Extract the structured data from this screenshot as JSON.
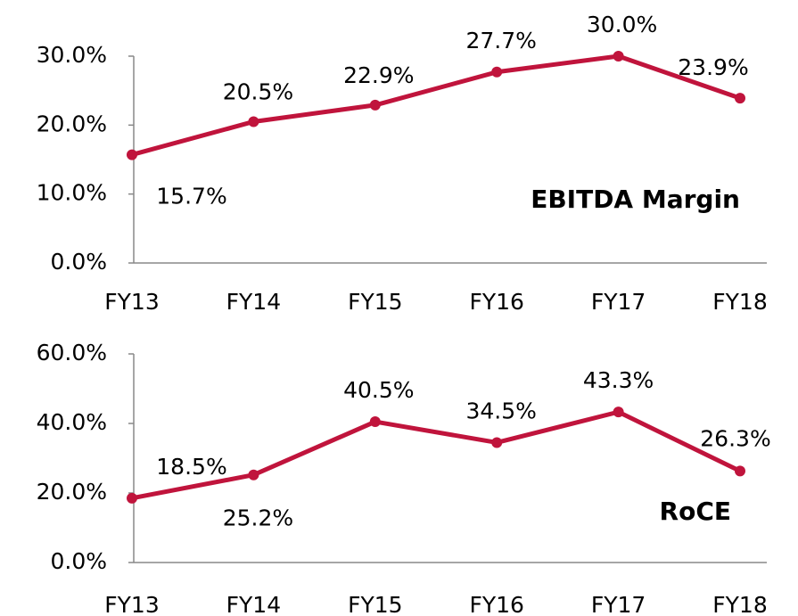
{
  "chart_data": [
    {
      "type": "line",
      "annotation": "EBITDA Margin",
      "categories": [
        "FY13",
        "FY14",
        "FY15",
        "FY16",
        "FY17",
        "FY18"
      ],
      "series": [
        {
          "color": "#c0143c",
          "values": [
            15.7,
            20.5,
            22.9,
            27.7,
            30.0,
            23.9
          ],
          "value_labels": [
            "15.7%",
            "20.5%",
            "22.9%",
            "27.7%",
            "30.0%",
            "23.9%"
          ]
        }
      ],
      "ylim": [
        0,
        30
      ],
      "yticks": [
        {
          "value": 0,
          "label": "0.0%"
        },
        {
          "value": 10,
          "label": "10.0%"
        },
        {
          "value": 20,
          "label": "20.0%"
        },
        {
          "value": 30,
          "label": "30.0%"
        }
      ]
    },
    {
      "type": "line",
      "annotation": "RoCE",
      "categories": [
        "FY13",
        "FY14",
        "FY15",
        "FY16",
        "FY17",
        "FY18"
      ],
      "series": [
        {
          "color": "#c0143c",
          "values": [
            18.5,
            25.2,
            40.5,
            34.5,
            43.3,
            26.3
          ],
          "value_labels": [
            "18.5%",
            "25.2%",
            "40.5%",
            "34.5%",
            "43.3%",
            "26.3%"
          ]
        }
      ],
      "ylim": [
        0,
        60
      ],
      "yticks": [
        {
          "value": 0,
          "label": "0.0%"
        },
        {
          "value": 20,
          "label": "20.0%"
        },
        {
          "value": 40,
          "label": "40.0%"
        },
        {
          "value": 60,
          "label": "60.0%"
        }
      ]
    }
  ]
}
